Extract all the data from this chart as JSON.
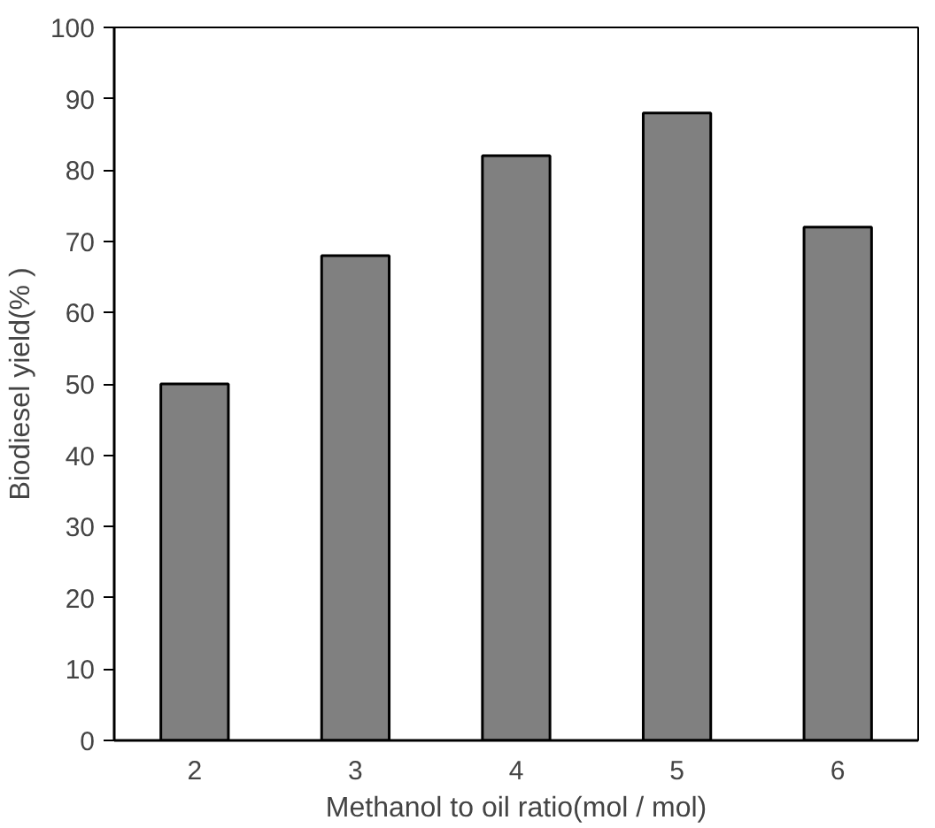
{
  "chart_data": {
    "type": "bar",
    "xlabel": "Methanol to oil ratio(mol / mol)",
    "ylabel": "Biodiesel yield(% )",
    "categories": [
      "2",
      "3",
      "4",
      "5",
      "6"
    ],
    "values": [
      50,
      68,
      82,
      88,
      72
    ],
    "color": "#808080",
    "ylim": [
      0,
      100
    ],
    "yticks": [
      0,
      10,
      20,
      30,
      40,
      50,
      60,
      70,
      80,
      90,
      100
    ],
    "grid": false
  }
}
